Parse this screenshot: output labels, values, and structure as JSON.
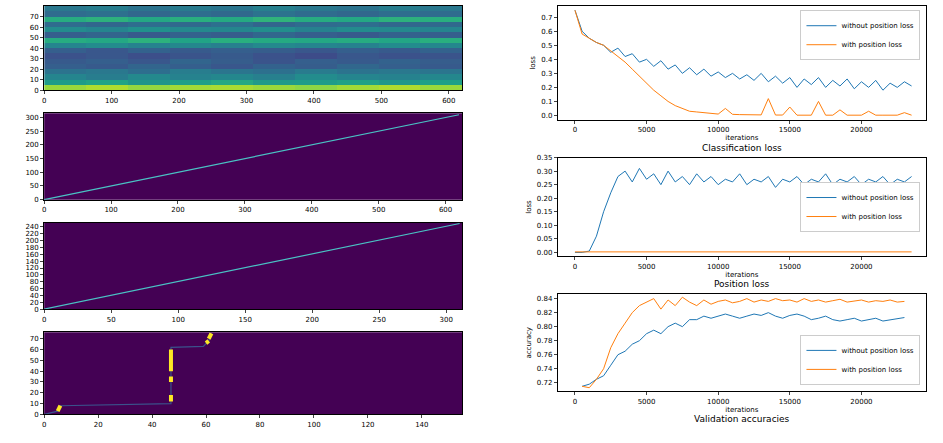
{
  "chart_data": [
    {
      "type": "heatmap",
      "x_edges": [
        0,
        62,
        124,
        186,
        248,
        310,
        372,
        434,
        496,
        558,
        620
      ],
      "y_edges": [
        0,
        5,
        10,
        15,
        20,
        25,
        30,
        35,
        40,
        45,
        50,
        55,
        60,
        65,
        70,
        75,
        80
      ],
      "cells": [
        [
          0.85,
          0.88,
          0.84,
          0.86,
          0.87,
          0.85,
          0.83,
          0.86,
          0.88,
          0.85
        ],
        [
          0.55,
          0.58,
          0.52,
          0.56,
          0.6,
          0.54,
          0.55,
          0.57,
          0.53,
          0.56
        ],
        [
          0.45,
          0.42,
          0.47,
          0.44,
          0.46,
          0.43,
          0.48,
          0.45,
          0.44,
          0.46
        ],
        [
          0.38,
          0.4,
          0.36,
          0.42,
          0.39,
          0.37,
          0.41,
          0.38,
          0.4,
          0.39
        ],
        [
          0.3,
          0.28,
          0.32,
          0.3,
          0.27,
          0.31,
          0.29,
          0.33,
          0.3,
          0.28
        ],
        [
          0.28,
          0.3,
          0.27,
          0.32,
          0.29,
          0.26,
          0.3,
          0.28,
          0.31,
          0.29
        ],
        [
          0.25,
          0.27,
          0.24,
          0.26,
          0.28,
          0.25,
          0.23,
          0.27,
          0.25,
          0.26
        ],
        [
          0.3,
          0.27,
          0.31,
          0.28,
          0.3,
          0.29,
          0.27,
          0.3,
          0.28,
          0.31
        ],
        [
          0.45,
          0.48,
          0.44,
          0.46,
          0.43,
          0.47,
          0.45,
          0.44,
          0.48,
          0.46
        ],
        [
          0.62,
          0.6,
          0.64,
          0.58,
          0.63,
          0.61,
          0.6,
          0.62,
          0.59,
          0.63
        ],
        [
          0.3,
          0.32,
          0.28,
          0.31,
          0.29,
          0.33,
          0.3,
          0.28,
          0.31,
          0.3
        ],
        [
          0.48,
          0.45,
          0.5,
          0.47,
          0.46,
          0.49,
          0.44,
          0.48,
          0.47,
          0.45
        ],
        [
          0.35,
          0.33,
          0.36,
          0.34,
          0.37,
          0.32,
          0.35,
          0.36,
          0.33,
          0.34
        ],
        [
          0.62,
          0.64,
          0.6,
          0.63,
          0.61,
          0.65,
          0.62,
          0.6,
          0.64,
          0.63
        ],
        [
          0.35,
          0.37,
          0.33,
          0.36,
          0.34,
          0.38,
          0.35,
          0.33,
          0.36,
          0.35
        ],
        [
          0.4,
          0.42,
          0.38,
          0.41,
          0.39,
          0.43,
          0.4,
          0.38,
          0.42,
          0.4
        ]
      ],
      "color_range": [
        0,
        1
      ],
      "xlim": [
        0,
        620
      ],
      "xticks": [
        0,
        100,
        200,
        300,
        400,
        500,
        600
      ],
      "ylim": [
        0,
        80
      ],
      "yticks": [
        0,
        10,
        20,
        30,
        40,
        50,
        60,
        70
      ],
      "grid": false
    },
    {
      "type": "line",
      "series": [
        {
          "color": "#4ac2c4",
          "x": [
            0,
            100,
            200,
            300,
            400,
            500,
            620
          ],
          "y": [
            0,
            50,
            100,
            150,
            200,
            250,
            310
          ]
        }
      ],
      "xlim": [
        0,
        625
      ],
      "xticks": [
        0,
        100,
        200,
        300,
        400,
        500,
        600
      ],
      "ylim": [
        0,
        315
      ],
      "yticks": [
        0,
        50,
        100,
        150,
        200,
        250,
        300
      ],
      "grid": false
    },
    {
      "type": "line",
      "series": [
        {
          "color": "#4ac2c4",
          "x": [
            0,
            50,
            100,
            150,
            200,
            250,
            310
          ],
          "y": [
            0,
            40,
            81,
            121,
            161,
            202,
            250
          ]
        }
      ],
      "xlim": [
        0,
        312
      ],
      "xticks": [
        0,
        50,
        100,
        150,
        200,
        250,
        300
      ],
      "ylim": [
        0,
        252
      ],
      "yticks": [
        0,
        20,
        40,
        60,
        80,
        100,
        120,
        140,
        160,
        180,
        200,
        220,
        240
      ],
      "grid": false
    },
    {
      "type": "line",
      "series": [
        {
          "color": "#3b528b",
          "x": [
            0,
            5,
            6,
            47,
            47,
            59,
            61,
            62
          ],
          "y": [
            0,
            3,
            8,
            10,
            62,
            63,
            68,
            75
          ]
        },
        {
          "color": "#fde725",
          "x": [
            5,
            6,
            null,
            47,
            47,
            null,
            47,
            47,
            null,
            47,
            47,
            null,
            60,
            61,
            null,
            61,
            62
          ],
          "y": [
            3,
            8,
            null,
            12,
            18,
            null,
            30,
            35,
            null,
            40,
            60,
            null,
            66,
            68,
            null,
            70,
            75
          ]
        }
      ],
      "xlim": [
        0,
        155
      ],
      "xticks": [
        0,
        20,
        40,
        60,
        80,
        100,
        120,
        140
      ],
      "ylim": [
        0,
        76
      ],
      "yticks": [
        0,
        10,
        20,
        30,
        40,
        50,
        60,
        70
      ],
      "grid": false
    },
    {
      "type": "line",
      "title": "Classification loss",
      "x_label": "iterations",
      "y_label": "loss",
      "x": [
        0,
        500,
        1000,
        1500,
        2000,
        2500,
        3000,
        3500,
        4000,
        4500,
        5000,
        5500,
        6000,
        6500,
        7000,
        7500,
        8000,
        8500,
        9000,
        9500,
        10000,
        10500,
        11000,
        11500,
        12000,
        12500,
        13000,
        13500,
        14000,
        14500,
        15000,
        15500,
        16000,
        16500,
        17000,
        17500,
        18000,
        18500,
        19000,
        19500,
        20000,
        20500,
        21000,
        21500,
        22000,
        22500,
        23000,
        23500
      ],
      "series": [
        {
          "name": "without position loss",
          "color": "#1f77b4",
          "values": [
            0.75,
            0.6,
            0.55,
            0.52,
            0.5,
            0.45,
            0.48,
            0.42,
            0.44,
            0.38,
            0.4,
            0.35,
            0.39,
            0.33,
            0.36,
            0.3,
            0.34,
            0.29,
            0.33,
            0.28,
            0.31,
            0.27,
            0.3,
            0.26,
            0.29,
            0.25,
            0.3,
            0.24,
            0.28,
            0.23,
            0.27,
            0.2,
            0.26,
            0.22,
            0.27,
            0.2,
            0.25,
            0.21,
            0.26,
            0.19,
            0.24,
            0.2,
            0.25,
            0.18,
            0.23,
            0.2,
            0.24,
            0.21
          ]
        },
        {
          "name": "with position loss",
          "color": "#ff7f0e",
          "values": [
            0.75,
            0.58,
            0.55,
            0.52,
            0.5,
            0.46,
            0.42,
            0.38,
            0.33,
            0.28,
            0.23,
            0.18,
            0.14,
            0.1,
            0.07,
            0.05,
            0.03,
            0.025,
            0.02,
            0.015,
            0.01,
            0.05,
            0.008,
            0.006,
            0.005,
            0.004,
            0.004,
            0.12,
            0.003,
            0.003,
            0.06,
            0.002,
            0.002,
            0.002,
            0.1,
            0.002,
            0.002,
            0.04,
            0.002,
            0.002,
            0.002,
            0.03,
            0.002,
            0.002,
            0.002,
            0.002,
            0.02,
            0.002
          ]
        }
      ],
      "xlim": [
        -1200,
        24500
      ],
      "xticks": [
        0,
        5000,
        10000,
        15000,
        20000
      ],
      "ylim": [
        -0.03,
        0.78
      ],
      "yticks": [
        {
          "value": 0,
          "label": "0.0"
        },
        0.1,
        0.2,
        0.3,
        0.4,
        0.5,
        0.6,
        0.7
      ],
      "legend": "upper right",
      "grid": false
    },
    {
      "type": "line",
      "title": "Position loss",
      "x_label": "iterations",
      "y_label": "loss",
      "x": [
        0,
        500,
        1000,
        1500,
        2000,
        2500,
        3000,
        3500,
        4000,
        4500,
        5000,
        5500,
        6000,
        6500,
        7000,
        7500,
        8000,
        8500,
        9000,
        9500,
        10000,
        10500,
        11000,
        11500,
        12000,
        12500,
        13000,
        13500,
        14000,
        14500,
        15000,
        15500,
        16000,
        16500,
        17000,
        17500,
        18000,
        18500,
        19000,
        19500,
        20000,
        20500,
        21000,
        21500,
        22000,
        22500,
        23000,
        23500
      ],
      "series": [
        {
          "name": "without position loss",
          "color": "#1f77b4",
          "values": [
            0,
            0,
            0.005,
            0.06,
            0.15,
            0.22,
            0.28,
            0.3,
            0.26,
            0.31,
            0.27,
            0.29,
            0.25,
            0.3,
            0.26,
            0.28,
            0.25,
            0.29,
            0.26,
            0.28,
            0.25,
            0.27,
            0.26,
            0.29,
            0.25,
            0.27,
            0.26,
            0.28,
            0.24,
            0.27,
            0.26,
            0.28,
            0.25,
            0.27,
            0.26,
            0.29,
            0.25,
            0.27,
            0.26,
            0.28,
            0.25,
            0.27,
            0.26,
            0.28,
            0.25,
            0.27,
            0.26,
            0.28
          ]
        },
        {
          "name": "with position loss",
          "color": "#ff7f0e",
          "values": [
            0.002,
            0.002,
            0.002,
            0.002,
            0.002,
            0.003,
            0.002,
            0.002,
            0.002,
            0.004,
            0.002,
            0.002,
            0.002,
            0.002,
            0.002,
            0.002,
            0.002,
            0.002,
            0.002,
            0.003,
            0.002,
            0.002,
            0.002,
            0.002,
            0.002,
            0.002,
            0.002,
            0.002,
            0.002,
            0.002,
            0.002,
            0.002,
            0.002,
            0.002,
            0.002,
            0.002,
            0.002,
            0.002,
            0.002,
            0.002,
            0.002,
            0.002,
            0.002,
            0.002,
            0.002,
            0.002,
            0.002,
            0.002
          ]
        }
      ],
      "xlim": [
        -1200,
        24500
      ],
      "xticks": [
        0,
        5000,
        10000,
        15000,
        20000
      ],
      "ylim": [
        -0.015,
        0.35
      ],
      "yticks": [
        {
          "value": 0,
          "label": "0.00"
        },
        0.05,
        {
          "value": 0.1,
          "label": "0.10"
        },
        0.15,
        {
          "value": 0.2,
          "label": "0.20"
        },
        0.25,
        {
          "value": 0.3,
          "label": "0.30"
        },
        0.35
      ],
      "legend": "center right",
      "grid": false
    },
    {
      "type": "line",
      "title": "Validation accuracies",
      "x_label": "iterations",
      "y_label": "accuracy",
      "x": [
        500,
        1000,
        1500,
        2000,
        2500,
        3000,
        3500,
        4000,
        4500,
        5000,
        5500,
        6000,
        6500,
        7000,
        7500,
        8000,
        8500,
        9000,
        9500,
        10000,
        10500,
        11000,
        11500,
        12000,
        12500,
        13000,
        13500,
        14000,
        14500,
        15000,
        15500,
        16000,
        16500,
        17000,
        17500,
        18000,
        18500,
        19000,
        19500,
        20000,
        20500,
        21000,
        21500,
        22000,
        22500,
        23000
      ],
      "series": [
        {
          "name": "without position loss",
          "color": "#1f77b4",
          "values": [
            0.715,
            0.718,
            0.725,
            0.73,
            0.745,
            0.76,
            0.765,
            0.775,
            0.78,
            0.79,
            0.795,
            0.79,
            0.8,
            0.805,
            0.8,
            0.81,
            0.81,
            0.815,
            0.812,
            0.815,
            0.818,
            0.815,
            0.812,
            0.815,
            0.818,
            0.816,
            0.82,
            0.815,
            0.812,
            0.816,
            0.818,
            0.815,
            0.81,
            0.812,
            0.815,
            0.81,
            0.808,
            0.81,
            0.812,
            0.808,
            0.81,
            0.812,
            0.808,
            0.81,
            0.812,
            0.813
          ]
        },
        {
          "name": "with position loss",
          "color": "#ff7f0e",
          "values": [
            0.715,
            0.713,
            0.725,
            0.74,
            0.77,
            0.79,
            0.805,
            0.82,
            0.83,
            0.835,
            0.84,
            0.825,
            0.838,
            0.83,
            0.842,
            0.835,
            0.83,
            0.838,
            0.832,
            0.836,
            0.838,
            0.834,
            0.836,
            0.84,
            0.835,
            0.838,
            0.836,
            0.84,
            0.837,
            0.838,
            0.835,
            0.84,
            0.836,
            0.838,
            0.835,
            0.837,
            0.839,
            0.835,
            0.836,
            0.838,
            0.835,
            0.837,
            0.836,
            0.838,
            0.835,
            0.836
          ]
        }
      ],
      "xlim": [
        -1200,
        24500
      ],
      "xticks": [
        0,
        5000,
        10000,
        15000,
        20000
      ],
      "ylim": [
        0.708,
        0.846
      ],
      "yticks": [
        0.72,
        0.74,
        0.76,
        0.78,
        {
          "value": 0.8,
          "label": "0.80"
        },
        0.82,
        0.84
      ],
      "legend": "lower right",
      "grid": false
    }
  ]
}
